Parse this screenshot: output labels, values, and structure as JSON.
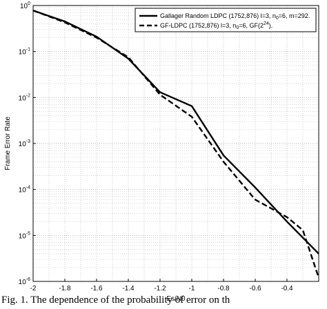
{
  "chart_data": {
    "type": "line",
    "xlabel": "Es/N0",
    "ylabel": "Frame Error Rate",
    "xlim": [
      -2,
      -0.2
    ],
    "ylim_log10": [
      -6,
      0
    ],
    "yscale": "log",
    "grid": "major and minor (dotted)",
    "legend_position": "top-right",
    "x_ticks": [
      "-2",
      "-1.8",
      "-1.6",
      "-1.4",
      "-1.2",
      "-1",
      "-0.8",
      "-0.6",
      "-0.4"
    ],
    "y_tick_exponents": [
      "0",
      "-1",
      "-2",
      "-3",
      "-4",
      "-5",
      "-6"
    ],
    "series": [
      {
        "legend_label": "Gallager Random LDPC (1752,876) l=3, n",
        "legend_sub": "0",
        "legend_tail": "=6, m=292.",
        "style": "solid",
        "x": [
          -2.0,
          -1.8,
          -1.6,
          -1.4,
          -1.2,
          -1.0,
          -0.8,
          -0.6,
          -0.4,
          -0.2
        ],
        "y": [
          0.78,
          0.45,
          0.21,
          0.07,
          0.013,
          0.0065,
          0.00055,
          0.00011,
          2e-05,
          4e-06
        ]
      },
      {
        "legend_label": "GF-LDPC (1752,876) l=3, n",
        "legend_sub": "0",
        "legend_mid": "=6, GF(2",
        "legend_sup": "24",
        "legend_tail": ").",
        "style": "dashed",
        "x": [
          -2.0,
          -1.8,
          -1.6,
          -1.4,
          -1.2,
          -1.0,
          -0.8,
          -0.6,
          -0.4,
          -0.3,
          -0.2
        ],
        "y": [
          0.78,
          0.43,
          0.2,
          0.075,
          0.0115,
          0.0038,
          0.0004,
          6e-05,
          2.5e-05,
          1.3e-05,
          1.2e-06
        ]
      }
    ]
  },
  "caption": "Fig. 1. The dependence of the probability of error on th"
}
